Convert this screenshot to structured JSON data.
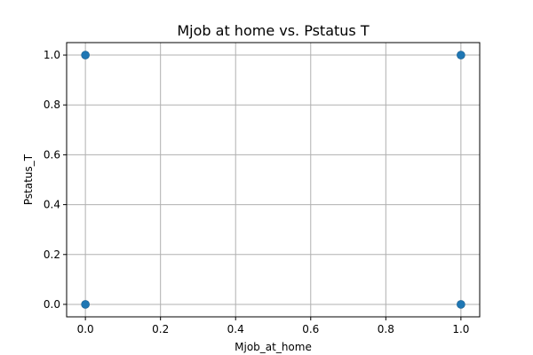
{
  "chart_data": {
    "type": "scatter",
    "title": "Mjob at home vs. Pstatus T",
    "xlabel": "Mjob_at_home",
    "ylabel": "Pstatus_T",
    "xlim": [
      -0.05,
      1.05
    ],
    "ylim": [
      -0.05,
      1.05
    ],
    "xticks": [
      "0.0",
      "0.2",
      "0.4",
      "0.6",
      "0.8",
      "1.0"
    ],
    "yticks": [
      "0.0",
      "0.2",
      "0.4",
      "0.6",
      "0.8",
      "1.0"
    ],
    "grid": true,
    "points": [
      {
        "x": 0,
        "y": 1
      },
      {
        "x": 1,
        "y": 1
      },
      {
        "x": 0,
        "y": 0
      },
      {
        "x": 1,
        "y": 0
      }
    ],
    "marker_color": "#1f77b4",
    "grid_color": "#b0b0b0"
  }
}
